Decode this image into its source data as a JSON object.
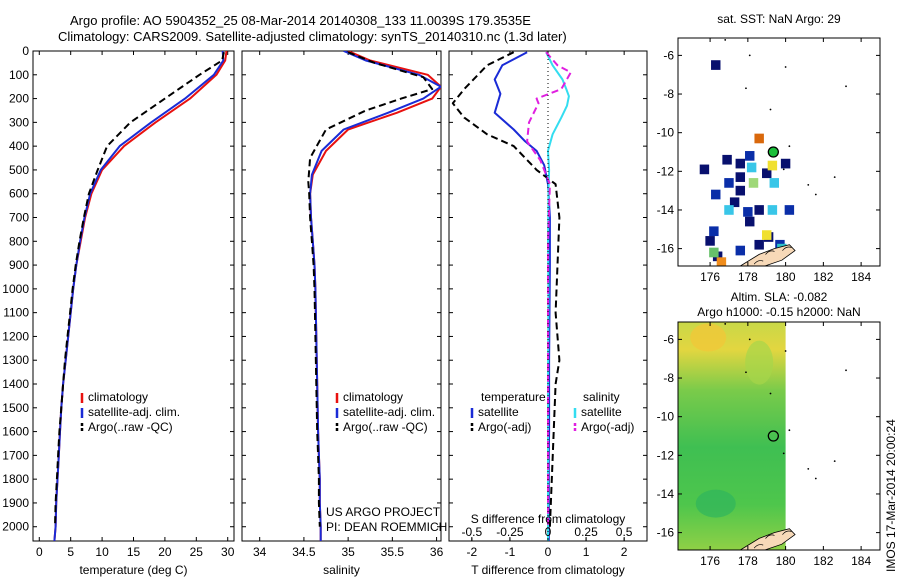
{
  "title": {
    "line1": "Argo profile: AO 5904352_25 08-Mar-2014 20140308_133 11.0039S 179.3535E",
    "line2": "Climatology: CARS2009. Satellite-adjusted climatology: synTS_20140310.nc (1.3d later)"
  },
  "credit": {
    "line1": "US ARGO PROJECT",
    "line2": "PI: DEAN ROEMMICH"
  },
  "side_stamp": "IMOS 17-Mar-2014 20:00:24",
  "colors": {
    "climatology": "#e8110f",
    "satellite": "#1a2bd6",
    "argo": "#000000",
    "sat_salinity": "#33ddf0",
    "argo_salinity": "#e020e0"
  },
  "chart_data": [
    {
      "id": "temperature",
      "type": "line",
      "xlabel": "temperature (deg C)",
      "ylabel": "",
      "xlim": [
        -1,
        31
      ],
      "ylim": [
        2060,
        0
      ],
      "xticks": [
        0,
        5,
        10,
        15,
        20,
        25,
        30
      ],
      "xtick_labels": [
        "0",
        "5",
        "10",
        "15",
        "20",
        "25",
        "30"
      ],
      "yticks": [
        0,
        100,
        200,
        300,
        400,
        500,
        600,
        700,
        800,
        900,
        1000,
        1100,
        1200,
        1300,
        1400,
        1500,
        1600,
        1700,
        1800,
        1900,
        2000
      ],
      "ytick_labels": [
        "0",
        "100",
        "200",
        "300",
        "400",
        "500",
        "600",
        "700",
        "800",
        "900",
        "1000",
        "1100",
        "1200",
        "1300",
        "1400",
        "1500",
        "1600",
        "1700",
        "1800",
        "1900",
        "2000"
      ],
      "legend": {
        "position": "bottom-right",
        "entries": [
          "climatology",
          "satellite-adj. clim.",
          "Argo(..raw -QC)"
        ]
      },
      "series": [
        {
          "name": "climatology",
          "style": "solid",
          "x": [
            29.8,
            29.6,
            28.2,
            24,
            18.5,
            13.5,
            10,
            8.3,
            7.3,
            6.6,
            5.9,
            5.4,
            5,
            4.6,
            4.2,
            3.8,
            3.5,
            3.3,
            3.1,
            2.9,
            2.7,
            2.6,
            2.4
          ],
          "y": [
            0,
            40,
            100,
            200,
            300,
            400,
            500,
            600,
            700,
            800,
            900,
            1000,
            1100,
            1200,
            1300,
            1400,
            1500,
            1600,
            1700,
            1800,
            1900,
            2000,
            2060
          ]
        },
        {
          "name": "satellite-adj. clim.",
          "style": "solid",
          "x": [
            29.2,
            29.3,
            27.8,
            23.2,
            17.8,
            12.8,
            9.8,
            8.1,
            7.2,
            6.5,
            5.9,
            5.4,
            5,
            4.6,
            4.2,
            3.8,
            3.5,
            3.3,
            3.1,
            2.9,
            2.7,
            2.6,
            2.4
          ],
          "y": [
            0,
            40,
            100,
            200,
            300,
            400,
            500,
            600,
            700,
            800,
            900,
            1000,
            1100,
            1200,
            1300,
            1400,
            1500,
            1600,
            1700,
            1800,
            1900,
            2000,
            2060
          ]
        },
        {
          "name": "Argo(..raw -QC)",
          "style": "dashed",
          "x": [
            29.4,
            29.1,
            25.5,
            20,
            14.5,
            10.8,
            9.3,
            7.9,
            7.1,
            6.4,
            5.8,
            5.3,
            4.9,
            4.5,
            4.1,
            3.8,
            3.5,
            3.2,
            3,
            2.8,
            2.6,
            2.5
          ],
          "y": [
            5,
            40,
            100,
            200,
            300,
            400,
            500,
            600,
            700,
            800,
            900,
            1000,
            1100,
            1200,
            1300,
            1400,
            1500,
            1600,
            1700,
            1800,
            1900,
            2000
          ]
        }
      ]
    },
    {
      "id": "salinity",
      "type": "line",
      "xlabel": "salinity",
      "ylabel": "",
      "xlim": [
        33.8,
        36.05
      ],
      "ylim": [
        2060,
        0
      ],
      "xticks": [
        34,
        34.5,
        35,
        35.5,
        36
      ],
      "xtick_labels": [
        "34",
        "34.5",
        "35",
        "35.5",
        "36"
      ],
      "legend": {
        "position": "bottom-right",
        "entries": [
          "climatology",
          "satellite-adj. clim.",
          "Argo(..raw -QC)"
        ]
      },
      "series": [
        {
          "name": "climatology",
          "style": "solid",
          "x": [
            35.0,
            35.25,
            35.9,
            36.05,
            35.95,
            35.55,
            35.0,
            34.75,
            34.6,
            34.57,
            34.58,
            34.6,
            34.62,
            34.63,
            34.64,
            34.65,
            34.66,
            34.67,
            34.68,
            34.68,
            34.69,
            34.69
          ],
          "y": [
            0,
            40,
            100,
            150,
            200,
            260,
            330,
            420,
            520,
            600,
            700,
            800,
            900,
            1000,
            1200,
            1400,
            1600,
            1700,
            1800,
            1900,
            2000,
            2060
          ]
        },
        {
          "name": "satellite-adj. clim.",
          "style": "solid",
          "x": [
            34.95,
            35.2,
            35.8,
            36.05,
            35.85,
            35.45,
            34.95,
            34.7,
            34.59,
            34.57,
            34.58,
            34.6,
            34.62,
            34.63,
            34.64,
            34.65,
            34.66,
            34.67,
            34.68,
            34.68,
            34.69,
            34.69
          ],
          "y": [
            0,
            40,
            100,
            150,
            200,
            260,
            330,
            420,
            520,
            600,
            700,
            800,
            900,
            1000,
            1200,
            1400,
            1600,
            1700,
            1800,
            1900,
            2000,
            2060
          ]
        },
        {
          "name": "Argo(..raw -QC)",
          "style": "dashed",
          "x": [
            35.0,
            35.3,
            35.85,
            35.95,
            35.6,
            35.2,
            34.75,
            34.57,
            34.55,
            34.56,
            34.57,
            34.59,
            34.61,
            34.62,
            34.63,
            34.64,
            34.65,
            34.66,
            34.67,
            34.67,
            34.68
          ],
          "y": [
            5,
            50,
            110,
            160,
            200,
            250,
            330,
            450,
            550,
            600,
            700,
            800,
            900,
            1000,
            1200,
            1400,
            1600,
            1700,
            1800,
            1900,
            2000
          ]
        }
      ]
    },
    {
      "id": "difference",
      "type": "line",
      "xlabel": "T difference from climatology",
      "xlabel_top": "S difference from climatology",
      "xlim": [
        -2.6,
        2.6
      ],
      "ylim": [
        2060,
        0
      ],
      "xticks": [
        -2,
        -1,
        0,
        1,
        2
      ],
      "xtick_labels": [
        "-2",
        "-1",
        "0",
        "1",
        "2"
      ],
      "xticks_S": [
        -0.5,
        -0.25,
        0,
        0.25,
        0.5
      ],
      "xtick_labels_S": [
        "-0.5",
        "-0.25",
        "0",
        "0.25",
        "0.5"
      ],
      "legend": {
        "position": "bottom",
        "temperature_header": "temperature",
        "salinity_header": "salinity",
        "entries": [
          "satellite",
          "Argo(-adj)",
          "satellite",
          "Argo(-adj)"
        ]
      },
      "series": [
        {
          "name": "temperature satellite",
          "style": "solid",
          "x": [
            -0.55,
            -1.2,
            -1.4,
            -1.25,
            -1.4,
            -0.9,
            -0.6,
            -0.3,
            -0.1,
            0,
            0.05,
            0.05,
            0.04,
            0.03,
            0.03,
            0.03,
            0.02,
            0.02,
            0.02,
            0.02
          ],
          "y": [
            5,
            60,
            120,
            180,
            260,
            330,
            380,
            420,
            480,
            560,
            700,
            900,
            1100,
            1300,
            1400,
            1600,
            1700,
            1800,
            1900,
            2060
          ]
        },
        {
          "name": "temperature Argo(-adj)",
          "style": "dashed",
          "x": [
            -0.9,
            -1.6,
            -2.2,
            -2.5,
            -2.2,
            -1.6,
            -0.9,
            -0.6,
            -0.3,
            0.2,
            0.3,
            0.25,
            0.2,
            0.3,
            0.2,
            0.15,
            0.1,
            0.05
          ],
          "y": [
            5,
            60,
            160,
            220,
            280,
            350,
            400,
            450,
            500,
            560,
            700,
            900,
            1100,
            1300,
            1400,
            1600,
            1800,
            2000
          ]
        },
        {
          "name": "salinity satellite",
          "style": "solid",
          "x": [
            -0.05,
            0.12,
            0.38,
            0.48,
            0.55,
            0.5,
            0.35,
            0.12,
            0,
            0.03,
            0.01,
            0,
            0.01,
            0,
            0,
            0
          ],
          "y": [
            5,
            60,
            120,
            160,
            190,
            230,
            280,
            350,
            420,
            500,
            600,
            800,
            1000,
            1400,
            1800,
            2060
          ]
        },
        {
          "name": "salinity Argo(-adj)",
          "style": "dashed",
          "x": [
            -0.05,
            0.25,
            0.6,
            0.35,
            -0.3,
            -0.25,
            -0.5,
            -0.55,
            -0.2,
            0.05,
            0,
            0,
            0
          ],
          "y": [
            5,
            60,
            90,
            160,
            200,
            220,
            300,
            380,
            460,
            560,
            800,
            1400,
            2000
          ]
        }
      ]
    },
    {
      "id": "sst-map",
      "type": "heatmap",
      "title": "sat. SST: NaN Argo: 29",
      "xlim": [
        174.3,
        185
      ],
      "ylim": [
        -16.9,
        -5.1
      ],
      "xticks": [
        176,
        178,
        180,
        182,
        184
      ],
      "xtick_labels": [
        "176",
        "178",
        "180",
        "182",
        "184"
      ],
      "yticks": [
        -6,
        -8,
        -10,
        -12,
        -14,
        -16
      ],
      "ytick_labels": [
        "-6",
        "-8",
        "-10",
        "-12",
        "-14",
        "-16"
      ],
      "float_position": {
        "lon": 179.35,
        "lat": -11.0
      }
    },
    {
      "id": "sla-map",
      "type": "heatmap",
      "title": "Altim. SLA: -0.082",
      "subtitle": "Argo h1000: -0.15 h2000: NaN",
      "xlim": [
        174.3,
        185
      ],
      "ylim": [
        -16.9,
        -5.1
      ],
      "xticks": [
        176,
        178,
        180,
        182,
        184
      ],
      "xtick_labels": [
        "176",
        "178",
        "180",
        "182",
        "184"
      ],
      "yticks": [
        -6,
        -8,
        -10,
        -12,
        -14,
        -16
      ],
      "ytick_labels": [
        "-6",
        "-8",
        "-10",
        "-12",
        "-14",
        "-16"
      ],
      "float_position": {
        "lon": 179.35,
        "lat": -11.0
      }
    }
  ]
}
